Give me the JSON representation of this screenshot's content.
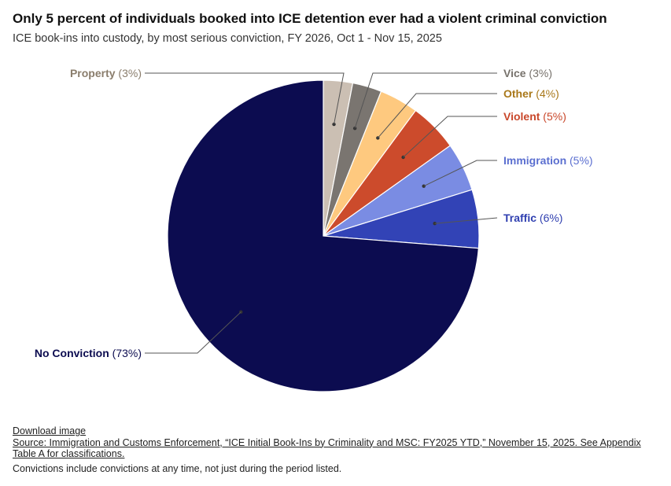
{
  "header": {
    "title": "Only 5 percent of individuals booked into ICE detention ever had a violent criminal conviction",
    "subtitle": "ICE book-ins into custody, by most serious conviction, FY 2026, Oct 1 - Nov 15, 2025"
  },
  "chart_data": {
    "type": "pie",
    "slices": [
      {
        "name": "Property",
        "value": 3,
        "label": "(3%)",
        "color": "#cbbfb3",
        "label_color": "#8a7d6c"
      },
      {
        "name": "Vice",
        "value": 3,
        "label": "(3%)",
        "color": "#7a7570",
        "label_color": "#77726c"
      },
      {
        "name": "Other",
        "value": 4,
        "label": "(4%)",
        "color": "#fec97f",
        "label_color": "#a9781a"
      },
      {
        "name": "Violent",
        "value": 5,
        "label": "(5%)",
        "color": "#cc4b2c",
        "label_color": "#c9472a"
      },
      {
        "name": "Immigration",
        "value": 5,
        "label": "(5%)",
        "color": "#7a8ce3",
        "label_color": "#5b6fd0"
      },
      {
        "name": "Traffic",
        "value": 6,
        "label": "(6%)",
        "color": "#3243b6",
        "label_color": "#2f3fb0"
      },
      {
        "name": "No Conviction",
        "value": 73,
        "label": "(73%)",
        "color": "#0c0c50",
        "label_color": "#0c0c50"
      }
    ]
  },
  "footer": {
    "download": "Download image",
    "source": "Source: Immigration and Customs Enforcement, “ICE Initial Book-Ins by Criminality and MSC: FY2025 YTD,” November 15, 2025. See Appendix Table A for classifications.",
    "note": "Convictions include convictions at any time, not just during the period listed."
  }
}
